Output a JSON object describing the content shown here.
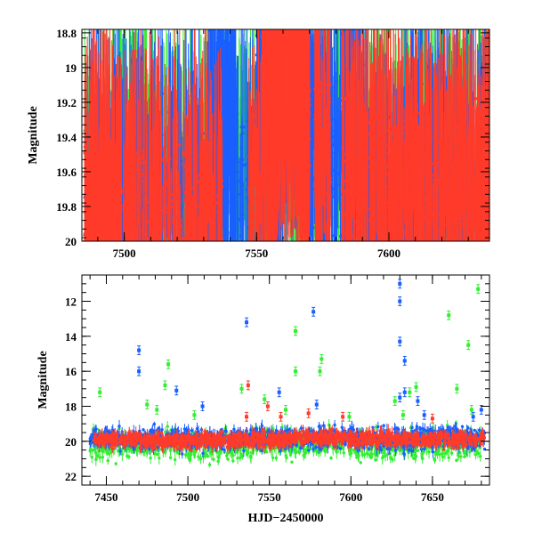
{
  "chart_data": [
    {
      "type": "scatter",
      "title": "",
      "xlabel": "",
      "ylabel": "Magnitude",
      "xlim": [
        7484,
        7638
      ],
      "ylim": [
        20.0,
        18.78
      ],
      "y_inverted": true,
      "grid": false,
      "x_ticks": [
        7500,
        7550,
        7600
      ],
      "x_tick_labels": [
        "7500",
        "7550",
        "7600"
      ],
      "y_ticks": [
        18.8,
        19.0,
        19.2,
        19.4,
        19.6,
        19.8,
        20.0
      ],
      "y_tick_labels": [
        "18.8",
        "19",
        "19.2",
        "19.4",
        "19.6",
        "19.8",
        "20"
      ],
      "series": [
        {
          "color": "#33ee33",
          "clusters": [
            [
              7485,
              7498,
              19.9,
              0.5,
              260
            ],
            [
              7498,
              7512,
              19.6,
              0.5,
              120
            ],
            [
              7512,
              7530,
              19.8,
              0.5,
              160
            ],
            [
              7530,
              7545,
              19.7,
              0.5,
              150
            ],
            [
              7545,
              7550,
              19.6,
              0.5,
              40
            ],
            [
              7550,
              7560,
              19.6,
              0.5,
              140
            ],
            [
              7560,
              7570,
              19.2,
              0.6,
              120
            ],
            [
              7570,
              7578,
              19.6,
              0.6,
              60
            ],
            [
              7578,
              7590,
              19.5,
              0.6,
              60
            ],
            [
              7590,
              7605,
              19.7,
              0.5,
              160
            ],
            [
              7605,
              7620,
              19.6,
              0.5,
              160
            ],
            [
              7620,
              7638,
              19.7,
              0.5,
              180
            ]
          ]
        },
        {
          "color": "#1a5fff",
          "clusters": [
            [
              7485,
              7500,
              19.8,
              0.45,
              150
            ],
            [
              7500,
              7520,
              19.7,
              0.45,
              150
            ],
            [
              7520,
              7532,
              19.7,
              0.5,
              90
            ],
            [
              7532,
              7542,
              19.35,
              0.45,
              220
            ],
            [
              7542,
              7550,
              19.6,
              0.4,
              40
            ],
            [
              7550,
              7560,
              19.3,
              0.45,
              160
            ],
            [
              7560,
              7568,
              19.0,
              0.5,
              120
            ],
            [
              7568,
              7578,
              19.4,
              0.5,
              140
            ],
            [
              7578,
              7592,
              19.5,
              0.55,
              140
            ],
            [
              7592,
              7606,
              19.8,
              0.45,
              130
            ],
            [
              7606,
              7622,
              19.6,
              0.5,
              160
            ],
            [
              7622,
              7638,
              19.7,
              0.45,
              140
            ]
          ]
        },
        {
          "color": "#ff3b2a",
          "clusters": [
            [
              7485,
              7498,
              19.8,
              0.4,
              250
            ],
            [
              7498,
              7520,
              19.8,
              0.4,
              180
            ],
            [
              7520,
              7530,
              19.85,
              0.35,
              80
            ],
            [
              7530,
              7537,
              19.75,
              0.35,
              60
            ],
            [
              7547,
              7552,
              19.7,
              0.4,
              40
            ],
            [
              7552,
              7558,
              19.3,
              0.45,
              150
            ],
            [
              7558,
              7565,
              19.0,
              0.35,
              260
            ],
            [
              7565,
              7570,
              19.3,
              0.45,
              160
            ],
            [
              7572,
              7578,
              19.4,
              0.45,
              80
            ],
            [
              7582,
              7596,
              19.65,
              0.4,
              160
            ],
            [
              7596,
              7620,
              19.7,
              0.4,
              260
            ],
            [
              7620,
              7638,
              19.7,
              0.45,
              240
            ]
          ]
        }
      ]
    },
    {
      "type": "scatter",
      "title": "",
      "xlabel": "HJD−2450000",
      "ylabel": "Magnitude",
      "xlim": [
        7435,
        7685
      ],
      "ylim": [
        22.5,
        10.5
      ],
      "y_inverted": true,
      "grid": false,
      "x_ticks": [
        7450,
        7500,
        7550,
        7600,
        7650
      ],
      "x_tick_labels": [
        "7450",
        "7500",
        "7550",
        "7600",
        "7650"
      ],
      "y_ticks": [
        12,
        14,
        16,
        18,
        20,
        22
      ],
      "y_tick_labels": [
        "12",
        "14",
        "16",
        "18",
        "20",
        "22"
      ],
      "series": [
        {
          "color": "#33ee33",
          "clusters": [
            [
              7440,
              7462,
              20.2,
              0.75,
              120
            ],
            [
              7462,
              7500,
              20.2,
              0.75,
              180
            ],
            [
              7500,
              7535,
              20.3,
              0.75,
              180
            ],
            [
              7535,
              7565,
              20.1,
              0.75,
              160
            ],
            [
              7565,
              7600,
              20.1,
              0.75,
              160
            ],
            [
              7600,
              7640,
              20.2,
              0.8,
              200
            ],
            [
              7640,
              7680,
              20.2,
              0.8,
              200
            ]
          ],
          "outliers": [
            [
              7446,
              17.2
            ],
            [
              7475,
              17.9
            ],
            [
              7481,
              18.2
            ],
            [
              7486,
              16.8
            ],
            [
              7488,
              15.6
            ],
            [
              7504,
              18.5
            ],
            [
              7533,
              17.0
            ],
            [
              7547,
              17.6
            ],
            [
              7560,
              18.2
            ],
            [
              7566,
              13.7
            ],
            [
              7566,
              16.0
            ],
            [
              7582,
              15.3
            ],
            [
              7581,
              16.0
            ],
            [
              7599,
              18.6
            ],
            [
              7627,
              17.7
            ],
            [
              7632,
              18.5
            ],
            [
              7636,
              17.2
            ],
            [
              7640,
              16.9
            ],
            [
              7660,
              12.8
            ],
            [
              7665,
              17.0
            ],
            [
              7672,
              14.5
            ],
            [
              7678,
              11.3
            ],
            [
              7674,
              18.2
            ]
          ]
        },
        {
          "color": "#1a5fff",
          "clusters": [
            [
              7440,
              7465,
              19.8,
              0.5,
              140
            ],
            [
              7465,
              7500,
              19.9,
              0.55,
              180
            ],
            [
              7500,
              7535,
              19.9,
              0.55,
              180
            ],
            [
              7535,
              7565,
              19.85,
              0.55,
              180
            ],
            [
              7565,
              7600,
              19.8,
              0.6,
              180
            ],
            [
              7600,
              7640,
              19.9,
              0.6,
              200
            ],
            [
              7640,
              7682,
              19.8,
              0.6,
              200
            ]
          ],
          "outliers": [
            [
              7470,
              14.8
            ],
            [
              7470,
              16.0
            ],
            [
              7493,
              17.1
            ],
            [
              7509,
              18.0
            ],
            [
              7536,
              13.2
            ],
            [
              7556,
              17.2
            ],
            [
              7577,
              12.6
            ],
            [
              7579,
              17.9
            ],
            [
              7630,
              11.0
            ],
            [
              7630,
              14.3
            ],
            [
              7630,
              12.0
            ],
            [
              7633,
              15.4
            ],
            [
              7633,
              17.2
            ],
            [
              7630,
              17.5
            ],
            [
              7641,
              17.7
            ],
            [
              7645,
              18.5
            ],
            [
              7675,
              18.6
            ],
            [
              7680,
              18.2
            ]
          ]
        },
        {
          "color": "#ff3b2a",
          "clusters": [
            [
              7442,
              7470,
              19.9,
              0.4,
              140
            ],
            [
              7470,
              7500,
              20.0,
              0.4,
              200
            ],
            [
              7500,
              7535,
              19.95,
              0.4,
              200
            ],
            [
              7535,
              7565,
              19.9,
              0.4,
              180
            ],
            [
              7565,
              7600,
              19.8,
              0.4,
              180
            ],
            [
              7600,
              7640,
              19.85,
              0.4,
              200
            ],
            [
              7640,
              7682,
              19.9,
              0.4,
              200
            ]
          ],
          "outliers": [
            [
              7537,
              16.8
            ],
            [
              7536,
              18.6
            ],
            [
              7549,
              18.0
            ],
            [
              7574,
              18.4
            ],
            [
              7557,
              18.6
            ],
            [
              7595,
              18.6
            ],
            [
              7650,
              18.7
            ]
          ]
        }
      ]
    }
  ]
}
